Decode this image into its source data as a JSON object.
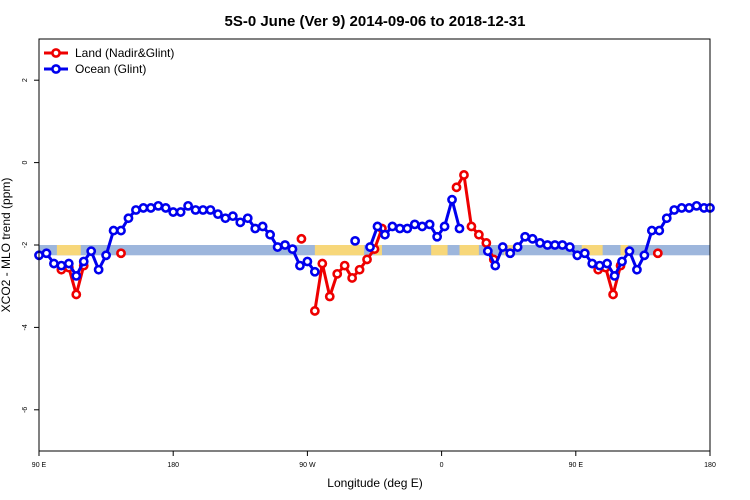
{
  "chart_data": {
    "type": "line",
    "title": "5S-0 June (Ver 9)   2014-09-06 to 2018-12-31",
    "xlabel": "Longitude (deg E)",
    "ylabel": "XCO2 - MLO trend (ppm)",
    "xlim": [
      90,
      540
    ],
    "ylim": [
      -7,
      3
    ],
    "x_ticks": [
      {
        "value": 90,
        "label": "90 E"
      },
      {
        "value": 180,
        "label": "180"
      },
      {
        "value": 270,
        "label": "90 W"
      },
      {
        "value": 360,
        "label": "0"
      },
      {
        "value": 450,
        "label": "90 E"
      },
      {
        "value": 540,
        "label": "180"
      }
    ],
    "y_ticks": [
      {
        "value": 2,
        "label": "2"
      },
      {
        "value": 0,
        "label": "0"
      },
      {
        "value": -2,
        "label": "-2"
      },
      {
        "value": -4,
        "label": "-4"
      },
      {
        "value": -6,
        "label": "-6"
      }
    ],
    "land_ocean_strip": {
      "y_range": [
        -2.25,
        -2.0
      ],
      "ocean_color": "#9db6dc",
      "land_color": "#f7d77a",
      "land_spans": [
        [
          102,
          118
        ],
        [
          275,
          308
        ],
        [
          315,
          320
        ],
        [
          353,
          364
        ],
        [
          372,
          385
        ],
        [
          402,
          408
        ],
        [
          454,
          468
        ],
        [
          480,
          485
        ]
      ]
    },
    "series": [
      {
        "name": "Land (Nadir&Glint)",
        "color": "#ee0000",
        "segments": [
          [
            [
              105,
              -2.6
            ],
            [
              110,
              -2.55
            ],
            [
              115,
              -3.2
            ],
            [
              120,
              -2.5
            ]
          ],
          [
            [
              145,
              -2.2
            ]
          ],
          [
            [
              266,
              -1.85
            ]
          ],
          [
            [
              275,
              -3.6
            ],
            [
              280,
              -2.45
            ],
            [
              285,
              -3.25
            ],
            [
              290,
              -2.7
            ],
            [
              295,
              -2.5
            ],
            [
              300,
              -2.8
            ],
            [
              305,
              -2.6
            ],
            [
              310,
              -2.35
            ],
            [
              315,
              -2.1
            ],
            [
              320,
              -1.6
            ]
          ],
          [
            [
              370,
              -0.6
            ],
            [
              375,
              -0.3
            ],
            [
              380,
              -1.55
            ],
            [
              385,
              -1.75
            ],
            [
              390,
              -1.95
            ],
            [
              395,
              -2.35
            ]
          ],
          [
            [
              465,
              -2.6
            ],
            [
              470,
              -2.55
            ],
            [
              475,
              -3.2
            ],
            [
              480,
              -2.5
            ]
          ],
          [
            [
              505,
              -2.2
            ]
          ]
        ]
      },
      {
        "name": "Ocean (Glint)",
        "color": "#0000ee",
        "segments": [
          [
            [
              90,
              -2.25
            ],
            [
              95,
              -2.2
            ],
            [
              100,
              -2.45
            ],
            [
              105,
              -2.5
            ],
            [
              110,
              -2.45
            ],
            [
              115,
              -2.75
            ],
            [
              120,
              -2.4
            ],
            [
              125,
              -2.15
            ],
            [
              130,
              -2.6
            ],
            [
              135,
              -2.25
            ],
            [
              140,
              -1.65
            ],
            [
              145,
              -1.65
            ],
            [
              150,
              -1.35
            ],
            [
              155,
              -1.15
            ],
            [
              160,
              -1.1
            ],
            [
              165,
              -1.1
            ],
            [
              170,
              -1.05
            ],
            [
              175,
              -1.1
            ],
            [
              180,
              -1.2
            ],
            [
              185,
              -1.2
            ],
            [
              190,
              -1.05
            ],
            [
              195,
              -1.15
            ],
            [
              200,
              -1.15
            ],
            [
              205,
              -1.15
            ],
            [
              210,
              -1.25
            ],
            [
              215,
              -1.35
            ],
            [
              220,
              -1.3
            ],
            [
              225,
              -1.45
            ],
            [
              230,
              -1.35
            ],
            [
              235,
              -1.6
            ],
            [
              240,
              -1.55
            ],
            [
              245,
              -1.75
            ],
            [
              250,
              -2.05
            ],
            [
              255,
              -2.0
            ],
            [
              260,
              -2.1
            ],
            [
              265,
              -2.5
            ],
            [
              270,
              -2.4
            ],
            [
              275,
              -2.65
            ]
          ],
          [
            [
              302,
              -1.9
            ]
          ],
          [
            [
              312,
              -2.05
            ],
            [
              317,
              -1.55
            ],
            [
              322,
              -1.75
            ],
            [
              327,
              -1.55
            ],
            [
              332,
              -1.6
            ],
            [
              337,
              -1.6
            ],
            [
              342,
              -1.5
            ],
            [
              347,
              -1.55
            ],
            [
              352,
              -1.5
            ],
            [
              357,
              -1.8
            ],
            [
              362,
              -1.55
            ],
            [
              367,
              -0.9
            ],
            [
              372,
              -1.6
            ]
          ],
          [
            [
              391,
              -2.15
            ],
            [
              396,
              -2.5
            ],
            [
              401,
              -2.05
            ],
            [
              406,
              -2.2
            ],
            [
              411,
              -2.05
            ],
            [
              416,
              -1.8
            ],
            [
              421,
              -1.85
            ],
            [
              426,
              -1.95
            ],
            [
              431,
              -2.0
            ],
            [
              436,
              -2.0
            ],
            [
              441,
              -2.0
            ],
            [
              446,
              -2.05
            ],
            [
              451,
              -2.25
            ],
            [
              456,
              -2.2
            ],
            [
              461,
              -2.45
            ],
            [
              466,
              -2.5
            ],
            [
              471,
              -2.45
            ],
            [
              476,
              -2.75
            ],
            [
              481,
              -2.4
            ],
            [
              486,
              -2.15
            ],
            [
              491,
              -2.6
            ],
            [
              496,
              -2.25
            ],
            [
              501,
              -1.65
            ],
            [
              506,
              -1.65
            ],
            [
              511,
              -1.35
            ],
            [
              516,
              -1.15
            ],
            [
              521,
              -1.1
            ],
            [
              526,
              -1.1
            ],
            [
              531,
              -1.05
            ],
            [
              536,
              -1.1
            ],
            [
              540,
              -1.1
            ]
          ]
        ]
      }
    ]
  }
}
